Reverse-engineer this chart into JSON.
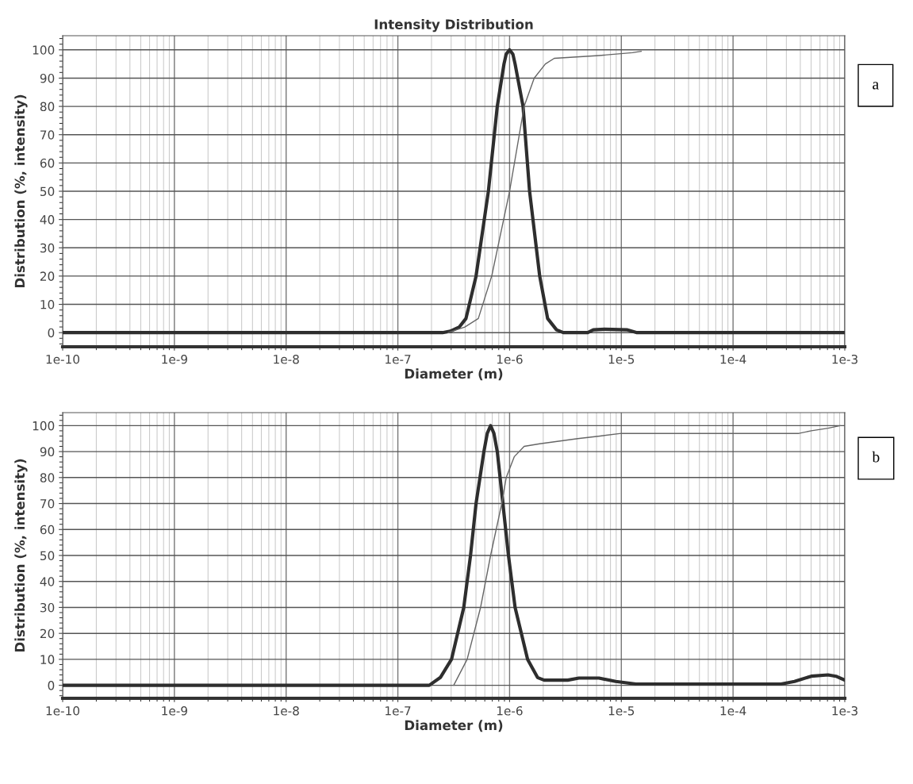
{
  "chart_data": [
    {
      "type": "line",
      "title": "Intensity Distribution",
      "xlabel": "Diameter (m)",
      "ylabel": "Distribution (%, intensity)",
      "log": "x",
      "grid": true,
      "marker": "none",
      "line_style": "solid",
      "xlim": [
        1e-10,
        0.001
      ],
      "xticks": [
        {
          "value": 1e-10,
          "label": "1e-10"
        },
        {
          "value": 1e-09,
          "label": "1e-9"
        },
        {
          "value": 1e-08,
          "label": "1e-8"
        },
        {
          "value": 1e-07,
          "label": "1e-7"
        },
        {
          "value": 1e-06,
          "label": "1e-6"
        },
        {
          "value": 1e-05,
          "label": "1e-5"
        },
        {
          "value": 0.0001,
          "label": "1e-4"
        },
        {
          "value": 0.001,
          "label": "1e-3"
        }
      ],
      "ylim": [
        -5,
        105
      ],
      "yticks": [
        0,
        10,
        20,
        30,
        40,
        50,
        60,
        70,
        80,
        90,
        100
      ],
      "annotations": [
        "a"
      ],
      "series": [
        {
          "color": "#2e2e2e",
          "x": [
            1e-10,
            2.51e-07,
            2.95e-07,
            3.55e-07,
            4.07e-07,
            5.01e-07,
            6.46e-07,
            7.76e-07,
            8.91e-07,
            9.33e-07,
            1e-06,
            1.07e-06,
            1.12e-06,
            1.32e-06,
            1.51e-06,
            1.86e-06,
            2.19e-06,
            2.63e-06,
            3.02e-06,
            5.01e-06,
            5.62e-06,
            7.08e-06,
            1.12e-05,
            1.38e-05,
            0.001
          ],
          "values": [
            0,
            0,
            0.5,
            2,
            5,
            20,
            50,
            80,
            95,
            98.5,
            100,
            98.5,
            95,
            80,
            50,
            20,
            5,
            1,
            0,
            0,
            1,
            1.2,
            1,
            0,
            0
          ]
        },
        {
          "color": "#666666",
          "x": [
            2.82e-07,
            3.98e-07,
            5.25e-07,
            6.92e-07,
            1e-06,
            1.35e-06,
            1.66e-06,
            2.09e-06,
            2.51e-06,
            6.31e-06,
            1.26e-05,
            1.51e-05
          ],
          "values": [
            0,
            2,
            5,
            20,
            50,
            80,
            90,
            95,
            97,
            98,
            99,
            99.5
          ]
        }
      ]
    },
    {
      "type": "line",
      "xlabel": "Diameter (m)",
      "ylabel": "Distribution (%, intensity)",
      "log": "x",
      "grid": true,
      "marker": "none",
      "line_style": "solid",
      "xlim": [
        1e-10,
        0.001
      ],
      "xticks": [
        {
          "value": 1e-10,
          "label": "1e-10"
        },
        {
          "value": 1e-09,
          "label": "1e-9"
        },
        {
          "value": 1e-08,
          "label": "1e-8"
        },
        {
          "value": 1e-07,
          "label": "1e-7"
        },
        {
          "value": 1e-06,
          "label": "1e-6"
        },
        {
          "value": 1e-05,
          "label": "1e-5"
        },
        {
          "value": 0.0001,
          "label": "1e-4"
        },
        {
          "value": 0.001,
          "label": "1e-3"
        }
      ],
      "ylim": [
        -5,
        105
      ],
      "yticks": [
        0,
        10,
        20,
        30,
        40,
        50,
        60,
        70,
        80,
        90,
        100
      ],
      "annotations": [
        "b"
      ],
      "series": [
        {
          "color": "#2e2e2e",
          "x": [
            1e-10,
            1.91e-07,
            2.4e-07,
            3.02e-07,
            3.89e-07,
            4.47e-07,
            5.01e-07,
            5.89e-07,
            6.31e-07,
            6.76e-07,
            7.24e-07,
            7.76e-07,
            8.71e-07,
            9.77e-07,
            1.12e-06,
            1.45e-06,
            1.78e-06,
            2.04e-06,
            3.31e-06,
            4.17e-06,
            6.31e-06,
            8.91e-06,
            1.35e-05,
            0.000269,
            0.000355,
            0.000501,
            0.000708,
            0.000832,
            0.001
          ],
          "values": [
            0,
            0,
            3,
            10,
            30,
            50,
            70,
            90,
            97,
            100,
            97,
            90,
            70,
            50,
            30,
            10,
            3,
            2,
            2,
            2.8,
            2.8,
            1.5,
            0.5,
            0.5,
            1.5,
            3.5,
            4,
            3.5,
            2
          ]
        },
        {
          "color": "#666666",
          "x": [
            3.16e-07,
            4.17e-07,
            5.5e-07,
            6.76e-07,
            8.51e-07,
            9.33e-07,
            1.1e-06,
            1.35e-06,
            1.86e-06,
            4.07e-06,
            6.46e-06,
            1e-05,
            0.000389,
            0.000501,
            0.000708,
            0.000912
          ],
          "values": [
            0,
            10,
            30,
            50,
            70,
            80,
            88,
            92,
            93,
            95,
            96,
            97,
            97,
            98,
            99,
            100
          ]
        }
      ]
    }
  ]
}
